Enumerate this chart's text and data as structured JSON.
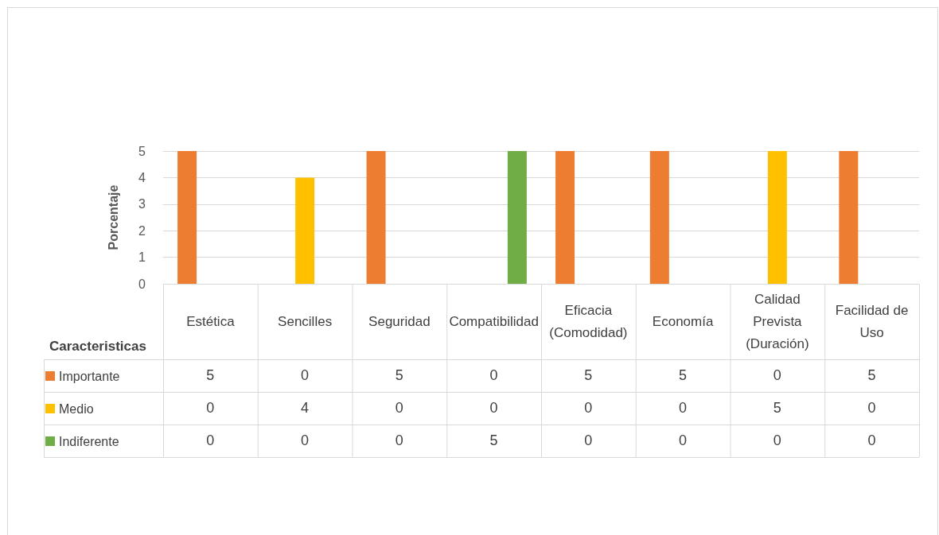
{
  "chart_data": {
    "type": "bar",
    "xlabel": "Caracteristicas",
    "ylabel": "Porcentaje",
    "categories": [
      "Estética",
      "Sencilles",
      "Seguridad",
      "Compatibilidad",
      "Eficacia (Comodidad)",
      "Economía",
      "Calidad Prevista (Duración)",
      "Facilidad de Uso"
    ],
    "series": [
      {
        "name": "Importante",
        "color": "#ed7d31",
        "values": [
          5,
          0,
          5,
          0,
          5,
          5,
          0,
          5
        ]
      },
      {
        "name": "Medio",
        "color": "#ffc000",
        "values": [
          0,
          4,
          0,
          0,
          0,
          0,
          5,
          0
        ]
      },
      {
        "name": "Indiferente",
        "color": "#70ad47",
        "values": [
          0,
          0,
          0,
          5,
          0,
          0,
          0,
          0
        ]
      }
    ],
    "ylim": [
      0,
      5
    ],
    "yticks": [
      0,
      1,
      2,
      3,
      4,
      5
    ],
    "grid": "y",
    "legend": "bottom left",
    "data_labels": true
  }
}
